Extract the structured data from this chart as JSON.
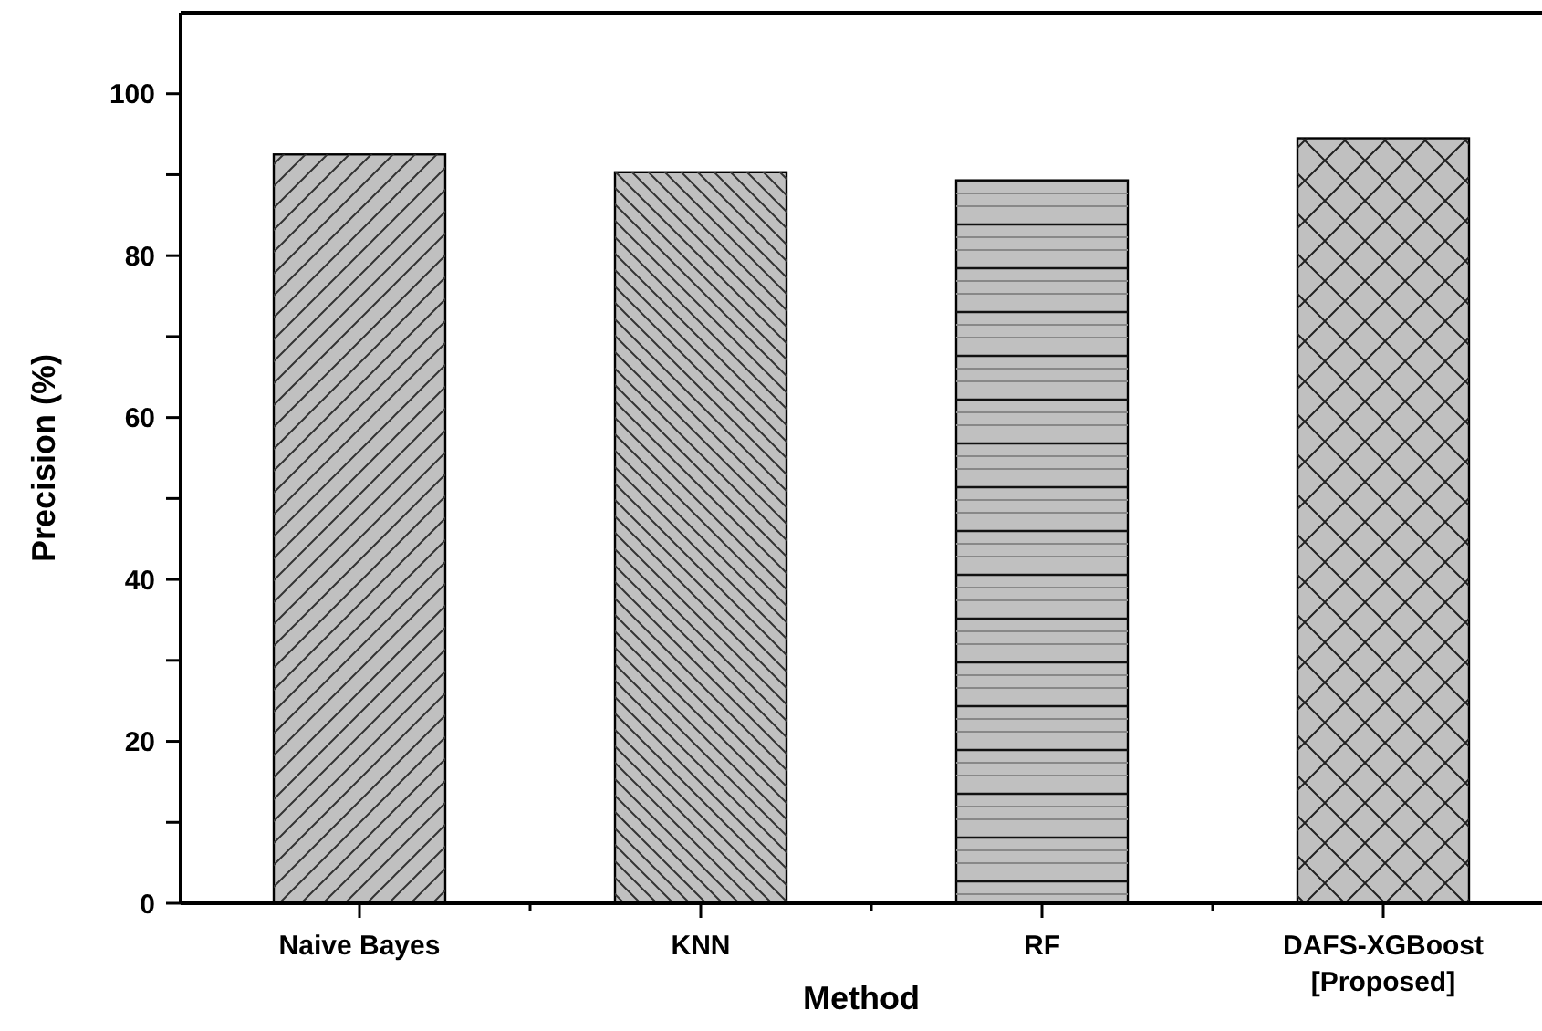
{
  "chart_data": {
    "type": "bar",
    "xlabel": "Method",
    "ylabel": "Precision (%)",
    "categories": [
      "Naive Bayes",
      "KNN",
      "RF",
      "DAFS-XGBoost\n[Proposed]"
    ],
    "values": [
      92.5,
      90.3,
      89.3,
      94.5
    ],
    "color": "#c0c0c0",
    "ylim": [
      0,
      110
    ],
    "yticks": [
      0,
      {
        "value": 10,
        "label": null
      },
      20,
      {
        "value": 30,
        "label": null
      },
      40,
      {
        "value": 50,
        "label": null
      },
      60,
      {
        "value": 70,
        "label": null
      },
      80,
      {
        "value": 90,
        "label": null
      },
      100
    ],
    "grid": false
  }
}
